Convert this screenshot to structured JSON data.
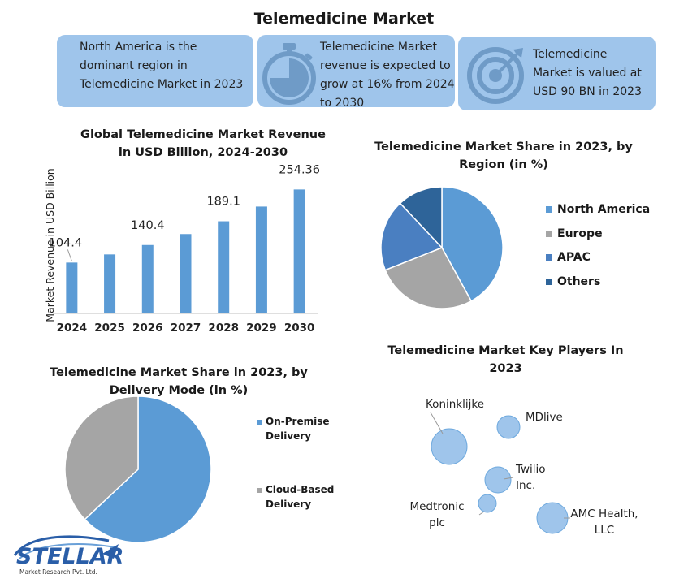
{
  "title": "Telemedicine Market",
  "cards": [
    {
      "icon": "globe-map-icon",
      "lines": [
        "North America is the",
        "dominant region in",
        "Telemedicine Market in 2023"
      ]
    },
    {
      "icon": "stopwatch-icon",
      "lines": [
        "Telemedicine Market",
        "revenue is expected to",
        "grow at 16% from 2024",
        "to 2030"
      ]
    },
    {
      "icon": "target-icon",
      "lines": [
        "Telemedicine",
        "Market is valued at",
        "USD 90 BN in 2023"
      ]
    }
  ],
  "colors": {
    "card": "#9fc5eb",
    "bar": "#5b9bd5",
    "gray": "#a5a5a5",
    "apac": "#4a7fc1",
    "others": "#2e6499",
    "bubble": "#9fc5eb",
    "bubble_stroke": "#6ea9de"
  },
  "chart_data": [
    {
      "type": "bar",
      "title_lines": [
        "Global Telemedicine Market Revenue",
        "in USD Billion, 2024-2030"
      ],
      "ylabel": "Market Revenue in USD Billion",
      "xlabel": "",
      "categories": [
        "2024",
        "2025",
        "2026",
        "2027",
        "2028",
        "2029",
        "2030"
      ],
      "values": [
        104.4,
        121.1,
        140.4,
        162.9,
        189.1,
        219.3,
        254.36
      ],
      "data_labels": [
        "104.4",
        "",
        "140.4",
        "",
        "189.1",
        "",
        "254.36"
      ],
      "ylim": [
        0,
        280
      ],
      "grid": false
    },
    {
      "type": "pie",
      "title_lines": [
        "Telemedicine Market Share in 2023, by",
        "Region (in %)"
      ],
      "labels": [
        "North America",
        "Europe",
        "APAC",
        "Others"
      ],
      "values": [
        42,
        27,
        19,
        12
      ],
      "colors": [
        "#5b9bd5",
        "#a5a5a5",
        "#4a7fc1",
        "#2e6499"
      ],
      "legend": "right"
    },
    {
      "type": "pie",
      "title_lines": [
        "Telemedicine Market Share in 2023, by",
        "Delivery Mode (in %)"
      ],
      "labels": [
        "On-Premise Delivery",
        "Cloud-Based Delivery"
      ],
      "label_lines": [
        [
          "On-Premise",
          "Delivery"
        ],
        [
          "Cloud-Based",
          "Delivery"
        ]
      ],
      "values": [
        63,
        37
      ],
      "colors": [
        "#5b9bd5",
        "#a5a5a5"
      ],
      "legend": "right"
    },
    {
      "type": "scatter",
      "title_lines": [
        "Telemedicine Market Key Players In",
        "2023"
      ],
      "players": [
        {
          "name_lines": [
            "Koninklijke"
          ]
        },
        {
          "name_lines": [
            "MDlive"
          ]
        },
        {
          "name_lines": [
            "Twilio",
            "Inc."
          ]
        },
        {
          "name_lines": [
            "Medtronic",
            "plc"
          ]
        },
        {
          "name_lines": [
            "AMC Health,",
            "LLC"
          ]
        }
      ]
    }
  ],
  "logo": {
    "name": "STELLAR",
    "tagline": "Market Research Pvt. Ltd."
  }
}
